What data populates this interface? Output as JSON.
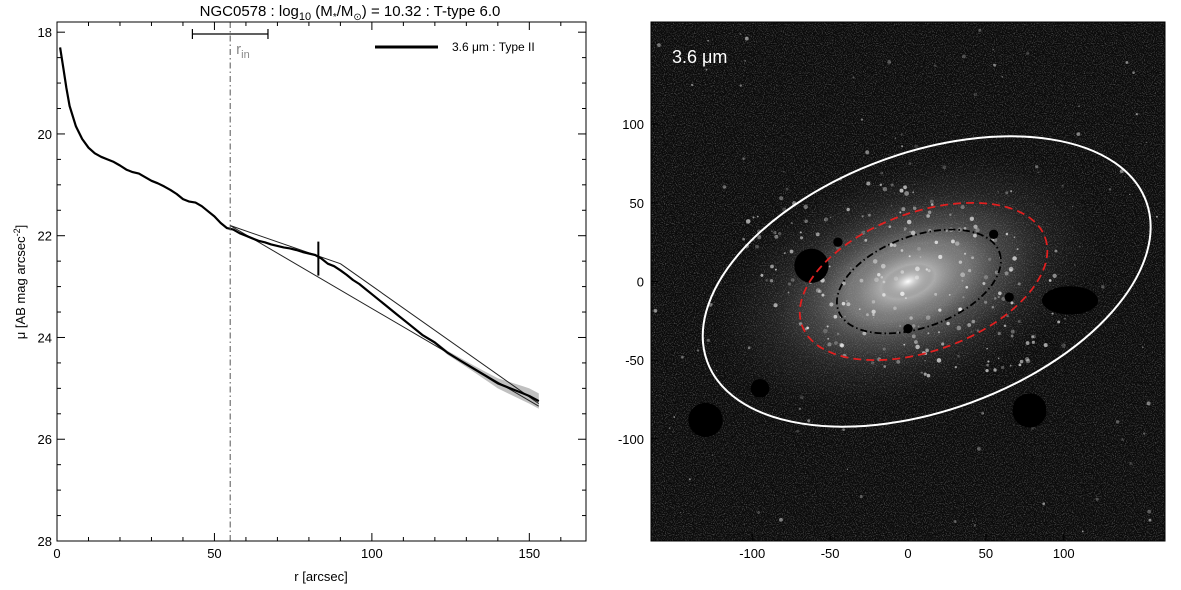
{
  "chart_data": [
    {
      "type": "line",
      "title_parts": [
        "NGC0578 : log",
        "10",
        " (M",
        "*",
        "/M",
        "⊙",
        ") = 10.32 : T-type 6.0"
      ],
      "xlabel": "r [arcsec]",
      "ylabel_parts": [
        "μ [AB mag arcsec",
        "-2",
        "]"
      ],
      "xlim": [
        0,
        168
      ],
      "ylim": [
        28,
        17.8
      ],
      "y_inverted": true,
      "x_ticks": [
        0,
        50,
        100,
        150
      ],
      "y_ticks": [
        18,
        20,
        22,
        24,
        26,
        28
      ],
      "legend": {
        "position": "top-right",
        "label": "3.6 μm : Type II"
      },
      "rin_label_parts": [
        "r",
        "in"
      ],
      "rin": 55,
      "rin_errorbar": [
        43,
        67
      ],
      "break_marker": {
        "r": 83,
        "mu": 22.45
      },
      "series": [
        {
          "name": "3.6 μm : Type II",
          "x": [
            1,
            2,
            3,
            4,
            6,
            8,
            10,
            12,
            14,
            16,
            18,
            20,
            22,
            24,
            26,
            28,
            30,
            32,
            34,
            36,
            38,
            40,
            42,
            44,
            46,
            48,
            50,
            52,
            54,
            56,
            58,
            60,
            62,
            64,
            66,
            68,
            70,
            72,
            74,
            76,
            78,
            80,
            82,
            84,
            86,
            88,
            90,
            92,
            94,
            96,
            98,
            100,
            104,
            108,
            112,
            116,
            120,
            124,
            128,
            132,
            136,
            140,
            144,
            148,
            150,
            153
          ],
          "y": [
            18.3,
            18.7,
            19.1,
            19.45,
            19.85,
            20.1,
            20.27,
            20.38,
            20.45,
            20.5,
            20.55,
            20.62,
            20.7,
            20.75,
            20.78,
            20.85,
            20.92,
            20.97,
            21.03,
            21.1,
            21.18,
            21.28,
            21.33,
            21.35,
            21.42,
            21.52,
            21.62,
            21.75,
            21.85,
            21.88,
            21.95,
            22.0,
            22.05,
            22.1,
            22.13,
            22.17,
            22.2,
            22.23,
            22.25,
            22.28,
            22.32,
            22.35,
            22.38,
            22.45,
            22.55,
            22.6,
            22.68,
            22.77,
            22.87,
            22.95,
            23.05,
            23.15,
            23.35,
            23.55,
            23.75,
            23.95,
            24.1,
            24.3,
            24.45,
            24.6,
            24.75,
            24.9,
            25.0,
            25.1,
            25.15,
            25.25
          ],
          "band_halfwidth": [
            0,
            0,
            0,
            0,
            0,
            0,
            0,
            0,
            0,
            0,
            0,
            0,
            0,
            0,
            0,
            0,
            0,
            0,
            0,
            0,
            0,
            0,
            0,
            0,
            0,
            0,
            0,
            0,
            0,
            0,
            0,
            0,
            0,
            0,
            0,
            0,
            0,
            0,
            0,
            0,
            0,
            0,
            0,
            0,
            0,
            0,
            0,
            0,
            0,
            0,
            0,
            0,
            0,
            0.01,
            0.02,
            0.02,
            0.03,
            0.04,
            0.05,
            0.06,
            0.08,
            0.1,
            0.12,
            0.14,
            0.15,
            0.15
          ]
        }
      ],
      "fit_lines": [
        {
          "x": [
            55,
            90
          ],
          "y": [
            21.8,
            22.55
          ]
        },
        {
          "x": [
            90,
            153
          ],
          "y": [
            22.55,
            25.3
          ]
        },
        {
          "x": [
            55,
            153
          ],
          "y": [
            21.8,
            25.35
          ]
        }
      ]
    },
    {
      "type": "image",
      "label_parts": [
        "3.6 ",
        "μm"
      ],
      "xlim": [
        -165,
        165
      ],
      "ylim": [
        -165,
        165
      ],
      "x_ticks": [
        -100,
        -50,
        0,
        50,
        100
      ],
      "y_ticks": [
        -100,
        -50,
        0,
        50,
        100
      ],
      "ellipses": [
        {
          "name": "outer",
          "color": "#ffffff",
          "style": "solid",
          "cx": 12,
          "cy": 0,
          "a": 150,
          "b": 82,
          "angle": 20
        },
        {
          "name": "break",
          "color": "#e02020",
          "style": "dashed",
          "cx": 10,
          "cy": 0,
          "a": 83,
          "b": 44,
          "angle": 20
        },
        {
          "name": "rin",
          "color": "#000000",
          "style": "dashdot",
          "cx": 7,
          "cy": 0,
          "a": 55,
          "b": 29,
          "angle": 20
        }
      ],
      "masks": [
        {
          "x": -62,
          "y": 10,
          "r": 11
        },
        {
          "x": 104,
          "y": -12,
          "rx": 18,
          "ry": 9
        },
        {
          "x": -130,
          "y": -88,
          "r": 11
        },
        {
          "x": 78,
          "y": -82,
          "r": 11
        },
        {
          "x": -95,
          "y": -68,
          "r": 6
        },
        {
          "x": 0,
          "y": -30,
          "r": 3
        },
        {
          "x": -45,
          "y": 25,
          "r": 3
        },
        {
          "x": 55,
          "y": 30,
          "r": 3
        },
        {
          "x": 65,
          "y": -10,
          "r": 3
        }
      ],
      "colormap": "grayscale"
    }
  ]
}
